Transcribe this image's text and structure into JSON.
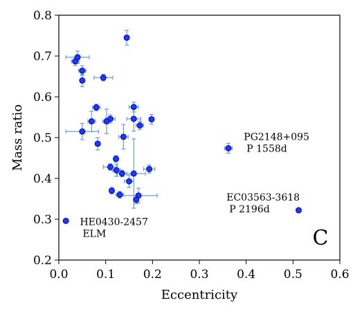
{
  "chart_data": {
    "type": "scatter",
    "title": "",
    "xlabel": "Eccentricity",
    "ylabel": "Mass ratio",
    "xlim": [
      0.0,
      0.6
    ],
    "ylim": [
      0.2,
      0.8
    ],
    "xticks": [
      "0.0",
      "0.1",
      "0.2",
      "0.3",
      "0.4",
      "0.5",
      "0.6"
    ],
    "yticks": [
      "0.2",
      "0.3",
      "0.4",
      "0.5",
      "0.6",
      "0.7",
      "0.8"
    ],
    "grid": false,
    "legend": "none",
    "panel_letter": "C",
    "colors": {
      "marker_fill": "#1f3bff",
      "marker_edge": "#0a14c8",
      "errorbar": "#6a9ad8"
    },
    "points": [
      {
        "x": 0.145,
        "y": 0.745,
        "xerr": 0.005,
        "yerr": 0.018
      },
      {
        "x": 0.04,
        "y": 0.697,
        "xerr": 0.025,
        "yerr": 0.015
      },
      {
        "x": 0.035,
        "y": 0.687,
        "xerr": 0.008,
        "yerr": 0.01
      },
      {
        "x": 0.05,
        "y": 0.664,
        "xerr": 0.008,
        "yerr": 0.012
      },
      {
        "x": 0.095,
        "y": 0.647,
        "xerr": 0.02,
        "yerr": 0.008
      },
      {
        "x": 0.05,
        "y": 0.64,
        "xerr": 0.005,
        "yerr": 0.015
      },
      {
        "x": 0.08,
        "y": 0.574,
        "xerr": 0.008,
        "yerr": 0.008
      },
      {
        "x": 0.16,
        "y": 0.575,
        "xerr": 0.01,
        "yerr": 0.012
      },
      {
        "x": 0.11,
        "y": 0.546,
        "xerr": 0.01,
        "yerr": 0.01
      },
      {
        "x": 0.16,
        "y": 0.546,
        "xerr": 0.015,
        "yerr": 0.03
      },
      {
        "x": 0.198,
        "y": 0.545,
        "xerr": 0.005,
        "yerr": 0.012
      },
      {
        "x": 0.07,
        "y": 0.54,
        "xerr": 0.008,
        "yerr": 0.025
      },
      {
        "x": 0.102,
        "y": 0.54,
        "xerr": 0.008,
        "yerr": 0.03
      },
      {
        "x": 0.173,
        "y": 0.53,
        "xerr": 0.008,
        "yerr": 0.01
      },
      {
        "x": 0.05,
        "y": 0.515,
        "xerr": 0.035,
        "yerr": 0.02
      },
      {
        "x": 0.138,
        "y": 0.502,
        "xerr": 0.01,
        "yerr": 0.03
      },
      {
        "x": 0.083,
        "y": 0.485,
        "xerr": 0.005,
        "yerr": 0.015
      },
      {
        "x": 0.362,
        "y": 0.474,
        "xerr": 0.008,
        "yerr": 0.012
      },
      {
        "x": 0.122,
        "y": 0.448,
        "xerr": 0.005,
        "yerr": 0.008
      },
      {
        "x": 0.11,
        "y": 0.428,
        "xerr": 0.015,
        "yerr": 0.008
      },
      {
        "x": 0.193,
        "y": 0.423,
        "xerr": 0.012,
        "yerr": 0.01
      },
      {
        "x": 0.123,
        "y": 0.42,
        "xerr": 0.008,
        "yerr": 0.015
      },
      {
        "x": 0.135,
        "y": 0.412,
        "xerr": 0.01,
        "yerr": 0.008
      },
      {
        "x": 0.16,
        "y": 0.412,
        "xerr": 0.025,
        "yerr": 0.085
      },
      {
        "x": 0.15,
        "y": 0.393,
        "xerr": 0.01,
        "yerr": 0.015
      },
      {
        "x": 0.113,
        "y": 0.37,
        "xerr": 0.005,
        "yerr": 0.008
      },
      {
        "x": 0.13,
        "y": 0.36,
        "xerr": 0.008,
        "yerr": 0.008
      },
      {
        "x": 0.17,
        "y": 0.358,
        "xerr": 0.04,
        "yerr": 0.018
      },
      {
        "x": 0.165,
        "y": 0.348,
        "xerr": 0.005,
        "yerr": 0.01
      },
      {
        "x": 0.512,
        "y": 0.322,
        "xerr": 0.0,
        "yerr": 0.0
      },
      {
        "x": 0.015,
        "y": 0.296,
        "xerr": 0.0,
        "yerr": 0.0
      }
    ],
    "annotations": [
      {
        "lines": [
          "PG2148+095",
          "P 1558d"
        ],
        "x": 0.395,
        "y": 0.494
      },
      {
        "lines": [
          "EC03563-3618",
          "P 2196d"
        ],
        "x": 0.358,
        "y": 0.346
      },
      {
        "lines": [
          "HE0430-2457",
          "ELM"
        ],
        "x": 0.045,
        "y": 0.286
      }
    ]
  }
}
